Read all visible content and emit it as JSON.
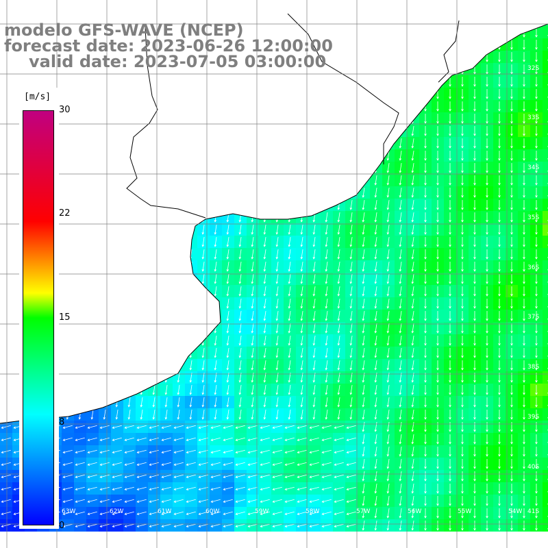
{
  "title": {
    "line1": "modelo GFS-WAVE (NCEP)",
    "line2": "forecast date: 2023-06-26 12:00:00",
    "line3": "valid date: 2023-07-05 03:00:00"
  },
  "colorbar": {
    "unit": "[m/s]",
    "ticks": [
      "30",
      "22",
      "15",
      "8",
      "0"
    ],
    "tick_values": [
      30,
      22,
      15,
      8,
      0
    ],
    "colors": [
      "#0000ff",
      "#00ffff",
      "#00ff00",
      "#ffff00",
      "#ff0000",
      "#c00080"
    ]
  },
  "map": {
    "lat_labels": [
      "32S",
      "33S",
      "34S",
      "35S",
      "36S",
      "37S",
      "38S",
      "39S",
      "40S",
      "41S"
    ],
    "lon_labels": [
      "63W",
      "62W",
      "61W",
      "60W",
      "59W",
      "58W",
      "57W",
      "56W",
      "55W",
      "54W"
    ],
    "land_color": "#ffffff",
    "grid_color": "#7f7f7f",
    "vector_color": "#ffffff",
    "wind_field": "wind speed (m/s) with direction vectors; strongest winds (~12-15 m/s) offshore to the east blowing southward, weakest (~3-6 m/s) near the southwest coast with westward flow"
  }
}
